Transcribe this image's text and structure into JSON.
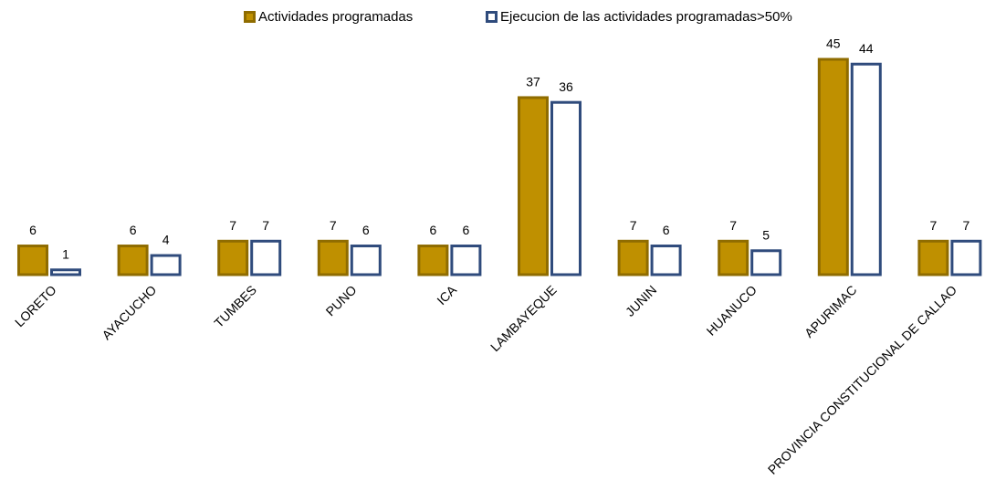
{
  "chart_data": {
    "type": "bar",
    "categories": [
      "LORETO",
      "AYACUCHO",
      "TUMBES",
      "PUNO",
      "ICA",
      "LAMBAYEQUE",
      "JUNIN",
      "HUANUCO",
      "APURIMAC",
      "PROVINCIA CONSTITUCIONAL DE CALLAO"
    ],
    "series": [
      {
        "name": "Actividades programadas",
        "color": "#bf9000",
        "values": [
          6,
          6,
          7,
          7,
          6,
          37,
          7,
          7,
          45,
          7
        ]
      },
      {
        "name": "Ejecucion de las actividades programadas>50%",
        "color": "#2f4b7c",
        "values": [
          1,
          4,
          7,
          6,
          6,
          36,
          6,
          5,
          44,
          7
        ]
      }
    ],
    "legend": "top"
  }
}
